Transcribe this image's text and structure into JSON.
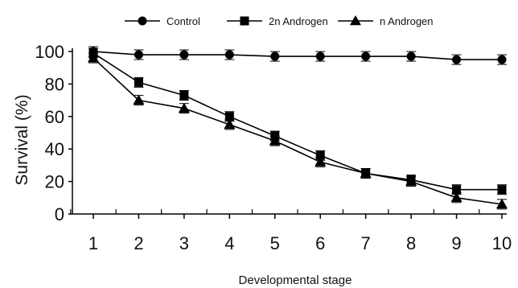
{
  "chart_data": {
    "type": "line",
    "title": "",
    "xlabel": "Developmental stage",
    "ylabel": "Survival (%)",
    "categories": [
      "1",
      "2",
      "3",
      "4",
      "5",
      "6",
      "7",
      "8",
      "9",
      "10"
    ],
    "x": [
      1,
      2,
      3,
      4,
      5,
      6,
      7,
      8,
      9,
      10
    ],
    "yticks": [
      "0",
      "20",
      "40",
      "60",
      "80",
      "100"
    ],
    "ylim": [
      0,
      100
    ],
    "xlim": [
      1,
      10
    ],
    "grid": false,
    "legend_position": "top",
    "series": [
      {
        "name": "Control",
        "marker": "circle",
        "values": [
          100,
          98,
          98,
          98,
          97,
          97,
          97,
          97,
          95,
          95
        ]
      },
      {
        "name": "2n Androgen",
        "marker": "square",
        "values": [
          99,
          81,
          73,
          60,
          48,
          36,
          25,
          21,
          15,
          15
        ]
      },
      {
        "name": "n Androgen",
        "marker": "triangle",
        "values": [
          96,
          70,
          65,
          55,
          45,
          32,
          25,
          20,
          10,
          6
        ]
      }
    ],
    "colors": {
      "line": "#000000",
      "background": "#ffffff"
    }
  }
}
